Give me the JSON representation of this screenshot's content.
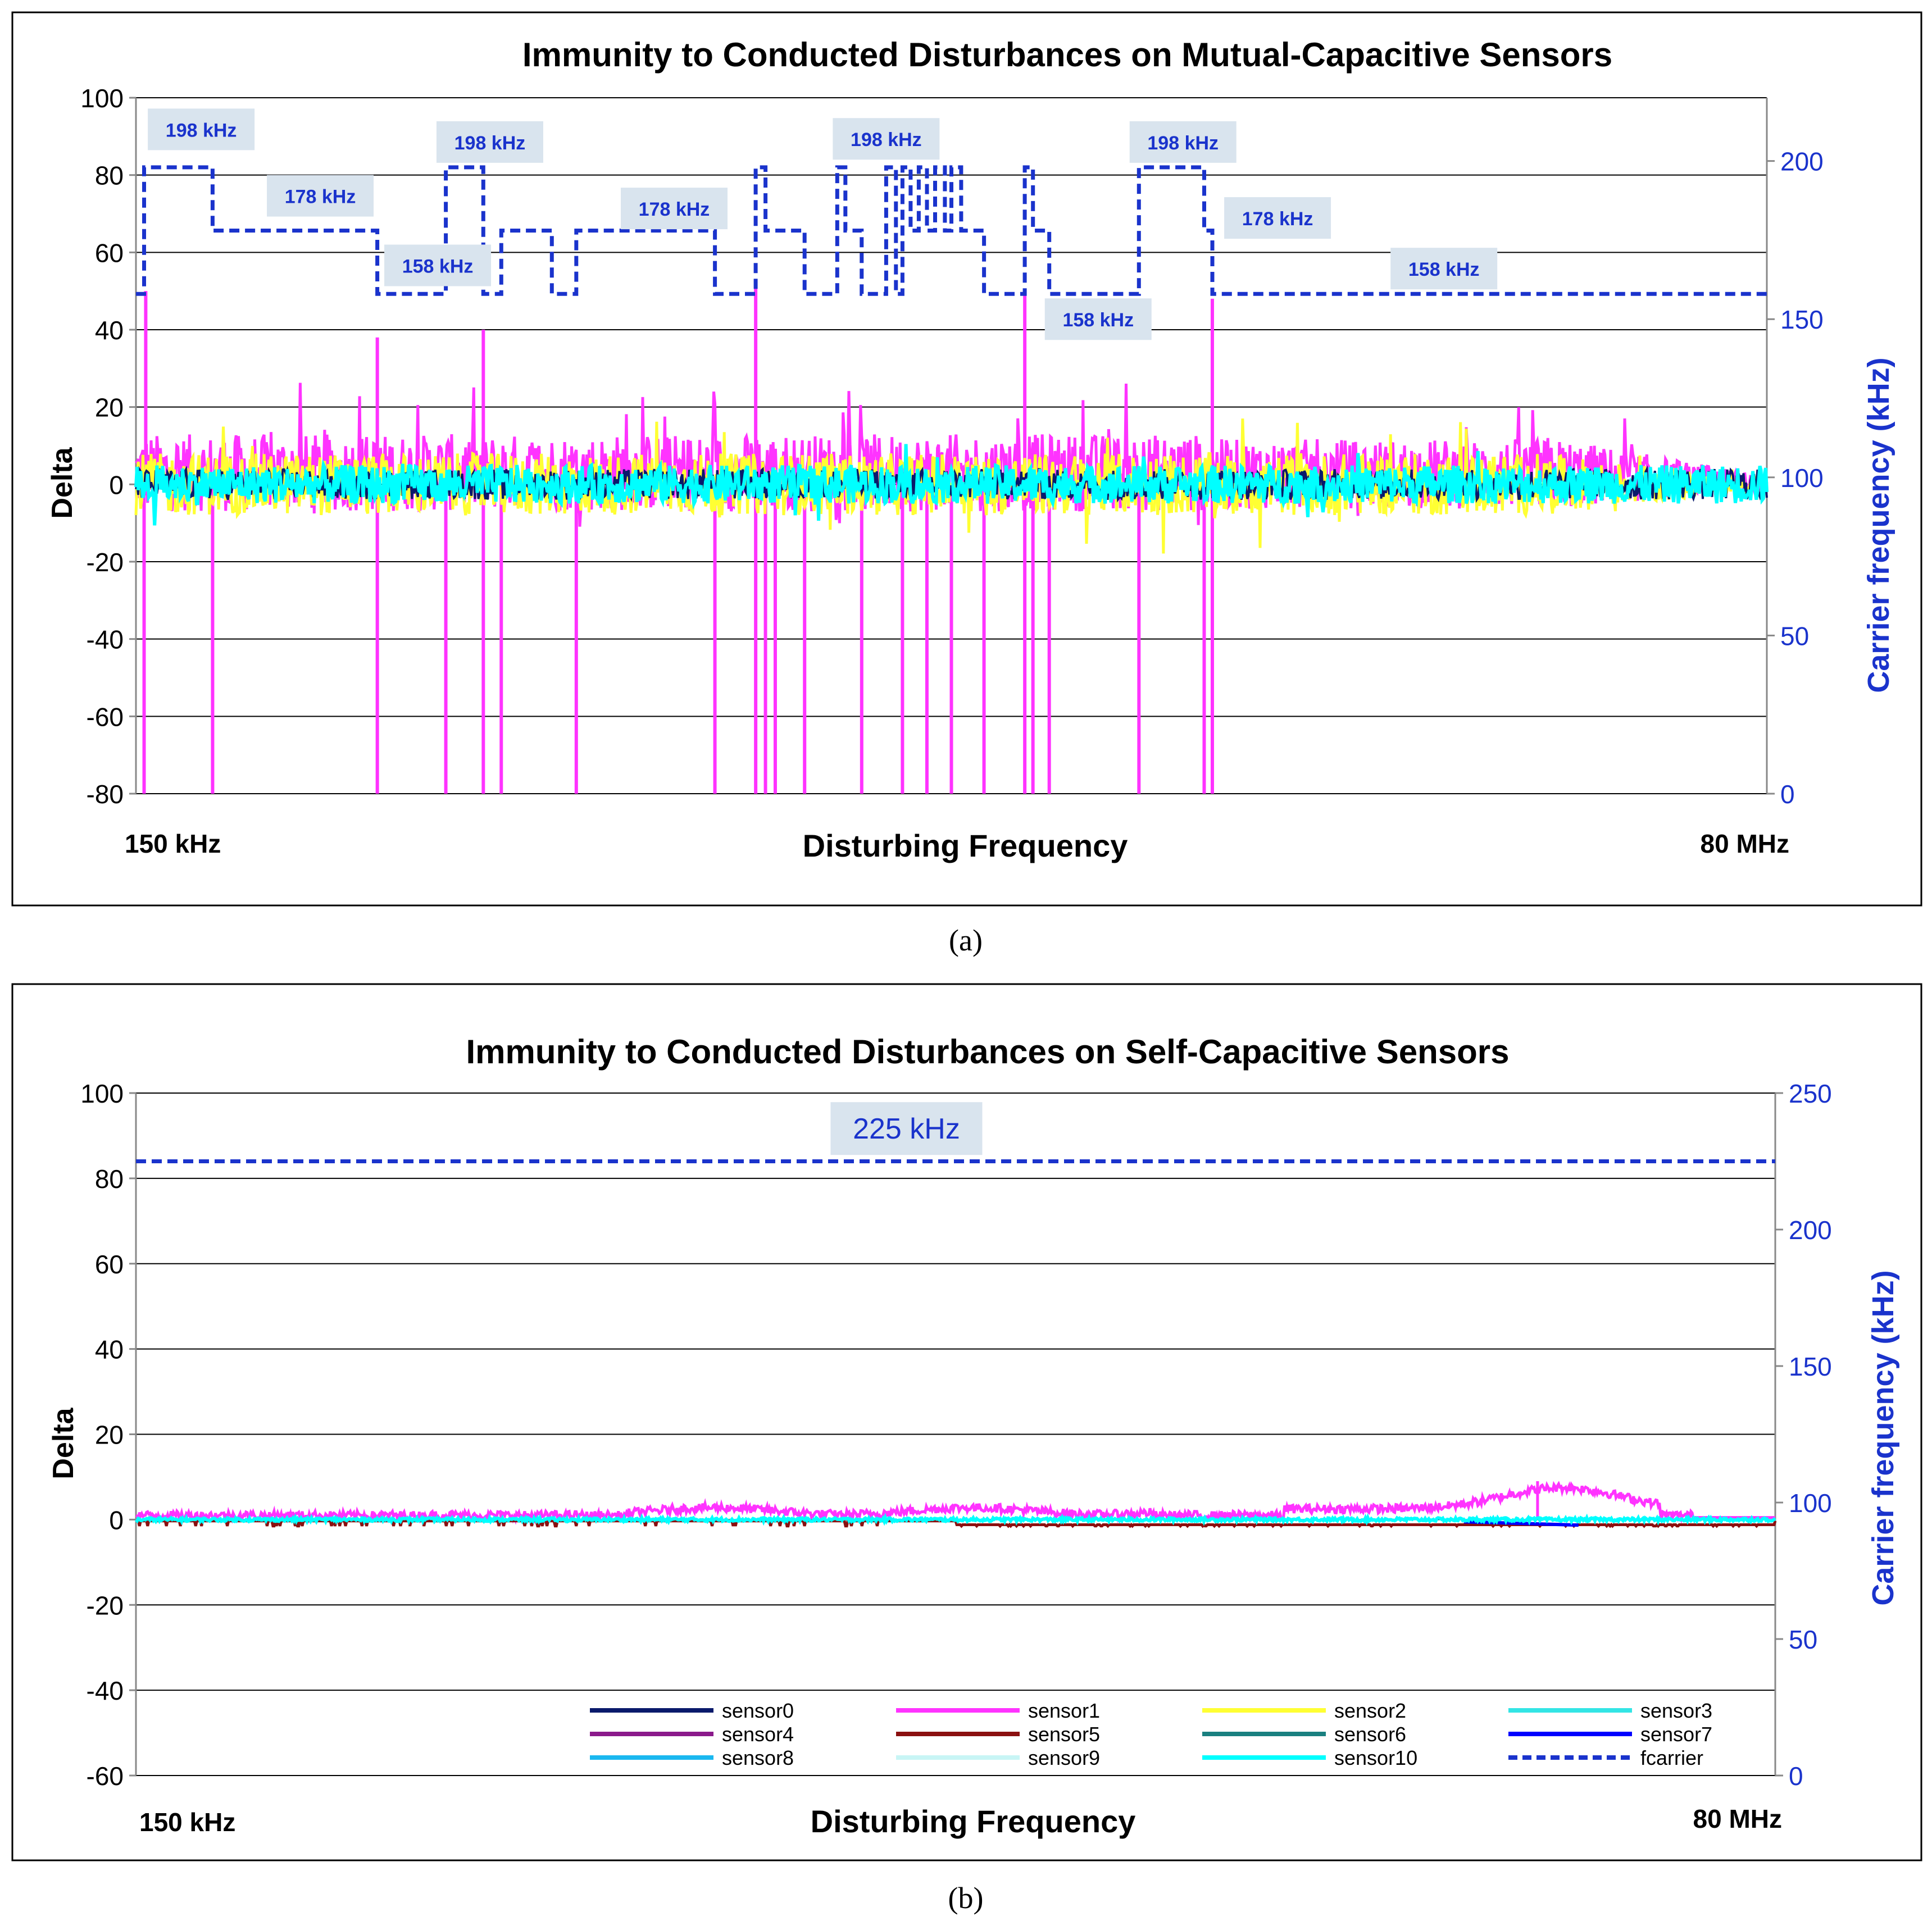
{
  "colors": {
    "sensor0": "#0a1a6b",
    "sensor1": "#ff33ff",
    "sensor2": "#ffff33",
    "sensor3": "#33e5e5",
    "sensor4": "#8b1a8b",
    "sensor5": "#8b1010",
    "sensor6": "#1a8080",
    "sensor7": "#0000ff",
    "sensor8": "#1ab8f0",
    "sensor9": "#c8f5f5",
    "sensor10": "#00ffff",
    "fcarrier": "#1a33cc",
    "label_box": "#d9e4ee"
  },
  "chart_data": [
    {
      "panel": "(a)",
      "type": "line",
      "title": "Immunity to Conducted Disturbances on Mutual-Capacitive Sensors",
      "xlabel": "Disturbing Frequency",
      "x_start_label": "150 kHz",
      "x_end_label": "80 MHz",
      "ylabel": "Delta",
      "ylim": [
        -80,
        100
      ],
      "yticks": [
        -80,
        -60,
        -40,
        -20,
        0,
        20,
        40,
        60,
        80,
        100
      ],
      "y2label": "Carrier frequency (kHz)",
      "y2lim": [
        0,
        220
      ],
      "y2ticks": [
        0,
        50,
        100,
        150,
        200
      ],
      "grid": true,
      "fcarrier_steps": [
        {
          "from": 0,
          "to": 0.005,
          "value": 158
        },
        {
          "from": 0.005,
          "to": 0.047,
          "value": 198
        },
        {
          "from": 0.047,
          "to": 0.148,
          "value": 178
        },
        {
          "from": 0.148,
          "to": 0.19,
          "value": 158
        },
        {
          "from": 0.19,
          "to": 0.213,
          "value": 198
        },
        {
          "from": 0.213,
          "to": 0.224,
          "value": 158
        },
        {
          "from": 0.224,
          "to": 0.255,
          "value": 178
        },
        {
          "from": 0.255,
          "to": 0.27,
          "value": 158
        },
        {
          "from": 0.27,
          "to": 0.355,
          "value": 178
        },
        {
          "from": 0.355,
          "to": 0.38,
          "value": 158
        },
        {
          "from": 0.38,
          "to": 0.386,
          "value": 198
        },
        {
          "from": 0.386,
          "to": 0.41,
          "value": 178
        },
        {
          "from": 0.41,
          "to": 0.43,
          "value": 158
        },
        {
          "from": 0.43,
          "to": 0.435,
          "value": 198
        },
        {
          "from": 0.435,
          "to": 0.445,
          "value": 178
        },
        {
          "from": 0.445,
          "to": 0.46,
          "value": 158
        },
        {
          "from": 0.46,
          "to": 0.466,
          "value": 198
        },
        {
          "from": 0.466,
          "to": 0.47,
          "value": 158
        },
        {
          "from": 0.47,
          "to": 0.475,
          "value": 198
        },
        {
          "from": 0.475,
          "to": 0.48,
          "value": 178
        },
        {
          "from": 0.48,
          "to": 0.485,
          "value": 198
        },
        {
          "from": 0.485,
          "to": 0.49,
          "value": 178
        },
        {
          "from": 0.49,
          "to": 0.496,
          "value": 198
        },
        {
          "from": 0.496,
          "to": 0.5,
          "value": 178
        },
        {
          "from": 0.5,
          "to": 0.506,
          "value": 198
        },
        {
          "from": 0.506,
          "to": 0.52,
          "value": 178
        },
        {
          "from": 0.52,
          "to": 0.545,
          "value": 158
        },
        {
          "from": 0.545,
          "to": 0.55,
          "value": 198
        },
        {
          "from": 0.55,
          "to": 0.56,
          "value": 178
        },
        {
          "from": 0.56,
          "to": 0.615,
          "value": 158
        },
        {
          "from": 0.615,
          "to": 0.655,
          "value": 198
        },
        {
          "from": 0.655,
          "to": 0.66,
          "value": 178
        },
        {
          "from": 0.66,
          "to": 1.0,
          "value": 158
        }
      ],
      "carrier_labels": [
        {
          "text": "198 kHz",
          "x": 0.04,
          "y": 210
        },
        {
          "text": "178 kHz",
          "x": 0.113,
          "y": 189
        },
        {
          "text": "158 kHz",
          "x": 0.185,
          "y": 167
        },
        {
          "text": "198 kHz",
          "x": 0.217,
          "y": 206
        },
        {
          "text": "178 kHz",
          "x": 0.33,
          "y": 185
        },
        {
          "text": "198 kHz",
          "x": 0.46,
          "y": 207
        },
        {
          "text": "158 kHz",
          "x": 0.59,
          "y": 150
        },
        {
          "text": "198 kHz",
          "x": 0.642,
          "y": 206
        },
        {
          "text": "178 kHz",
          "x": 0.7,
          "y": 182
        },
        {
          "text": "158 kHz",
          "x": 0.802,
          "y": 166
        }
      ],
      "delta_envelope": {
        "series": "sensor1",
        "typical_range": [
          -20,
          20
        ],
        "max_peak": 50,
        "min_clip": -80,
        "dropout_positions": [
          0.005,
          0.047,
          0.148,
          0.19,
          0.213,
          0.224,
          0.27,
          0.355,
          0.38,
          0.386,
          0.392,
          0.41,
          0.445,
          0.47,
          0.485,
          0.5,
          0.52,
          0.545,
          0.55,
          0.56,
          0.615,
          0.655,
          0.66
        ]
      }
    },
    {
      "panel": "(b)",
      "type": "line",
      "title": "Immunity to Conducted Disturbances on Self-Capacitive Sensors",
      "xlabel": "Disturbing Frequency",
      "x_start_label": "150 kHz",
      "x_end_label": "80 MHz",
      "ylabel": "Delta",
      "ylim": [
        -60,
        100
      ],
      "yticks": [
        -60,
        -40,
        -20,
        0,
        20,
        40,
        60,
        80,
        100
      ],
      "y2label": "Carrier frequency (kHz)",
      "y2lim": [
        0,
        250
      ],
      "y2ticks": [
        0,
        50,
        100,
        150,
        200,
        250
      ],
      "grid": true,
      "fcarrier_constant": 225,
      "carrier_labels": [
        {
          "text": "225 kHz",
          "x": 0.47,
          "y": 237
        }
      ],
      "delta_envelope": {
        "series": "sensor1",
        "typical_range": [
          0,
          5
        ],
        "max_peak": 9,
        "min_value": -2
      },
      "legend": [
        {
          "name": "sensor0",
          "style": "solid"
        },
        {
          "name": "sensor1",
          "style": "solid"
        },
        {
          "name": "sensor2",
          "style": "solid"
        },
        {
          "name": "sensor3",
          "style": "solid"
        },
        {
          "name": "sensor4",
          "style": "solid"
        },
        {
          "name": "sensor5",
          "style": "solid"
        },
        {
          "name": "sensor6",
          "style": "solid"
        },
        {
          "name": "sensor7",
          "style": "solid"
        },
        {
          "name": "sensor8",
          "style": "solid"
        },
        {
          "name": "sensor9",
          "style": "solid"
        },
        {
          "name": "sensor10",
          "style": "solid"
        },
        {
          "name": "fcarrier",
          "style": "dashed"
        }
      ]
    }
  ]
}
